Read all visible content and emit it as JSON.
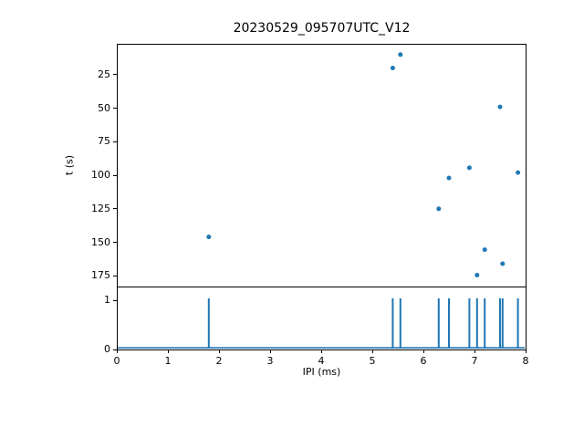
{
  "figure": {
    "title": "20230529_095707UTC_V12",
    "background_color": "#ffffff",
    "accent_color": "#1f77b4"
  },
  "chart_data": [
    {
      "type": "scatter",
      "title": "20230529_095707UTC_V12",
      "ylabel": "t (s)",
      "xlabel": "IPI (ms)",
      "xlim": [
        0,
        8
      ],
      "ylim": [
        2,
        183
      ],
      "y_axis_direction": "inverted (t increases downward)",
      "y_ticks": [
        25,
        50,
        75,
        100,
        125,
        150,
        175
      ],
      "x_ticks": [
        0,
        1,
        2,
        3,
        4,
        5,
        6,
        7,
        8
      ],
      "x_tick_labels_shown": false,
      "grid": false,
      "legend": "none",
      "marker_color": "#1f77b4",
      "points": [
        [
          5.55,
          10
        ],
        [
          5.4,
          20
        ],
        [
          7.5,
          49
        ],
        [
          6.9,
          94.5
        ],
        [
          7.85,
          98
        ],
        [
          6.5,
          102
        ],
        [
          6.3,
          125
        ],
        [
          1.8,
          146
        ],
        [
          7.2,
          155.5
        ],
        [
          7.55,
          166
        ],
        [
          7.05,
          174.5
        ]
      ]
    },
    {
      "type": "line",
      "subtype": "event-spike-train",
      "xlabel": "IPI (ms)",
      "xlim": [
        0,
        8
      ],
      "ylim": [
        0,
        1.28
      ],
      "y_ticks": [
        0,
        1
      ],
      "x_ticks": [
        0,
        1,
        2,
        3,
        4,
        5,
        6,
        7,
        8
      ],
      "grid": false,
      "line_color": "#1f77b4",
      "baseline_y": 0,
      "spike_height": 1.04,
      "spike_x_values": [
        1.8,
        5.4,
        5.55,
        6.3,
        6.5,
        6.9,
        7.05,
        7.2,
        7.5,
        7.55,
        7.85
      ]
    }
  ]
}
